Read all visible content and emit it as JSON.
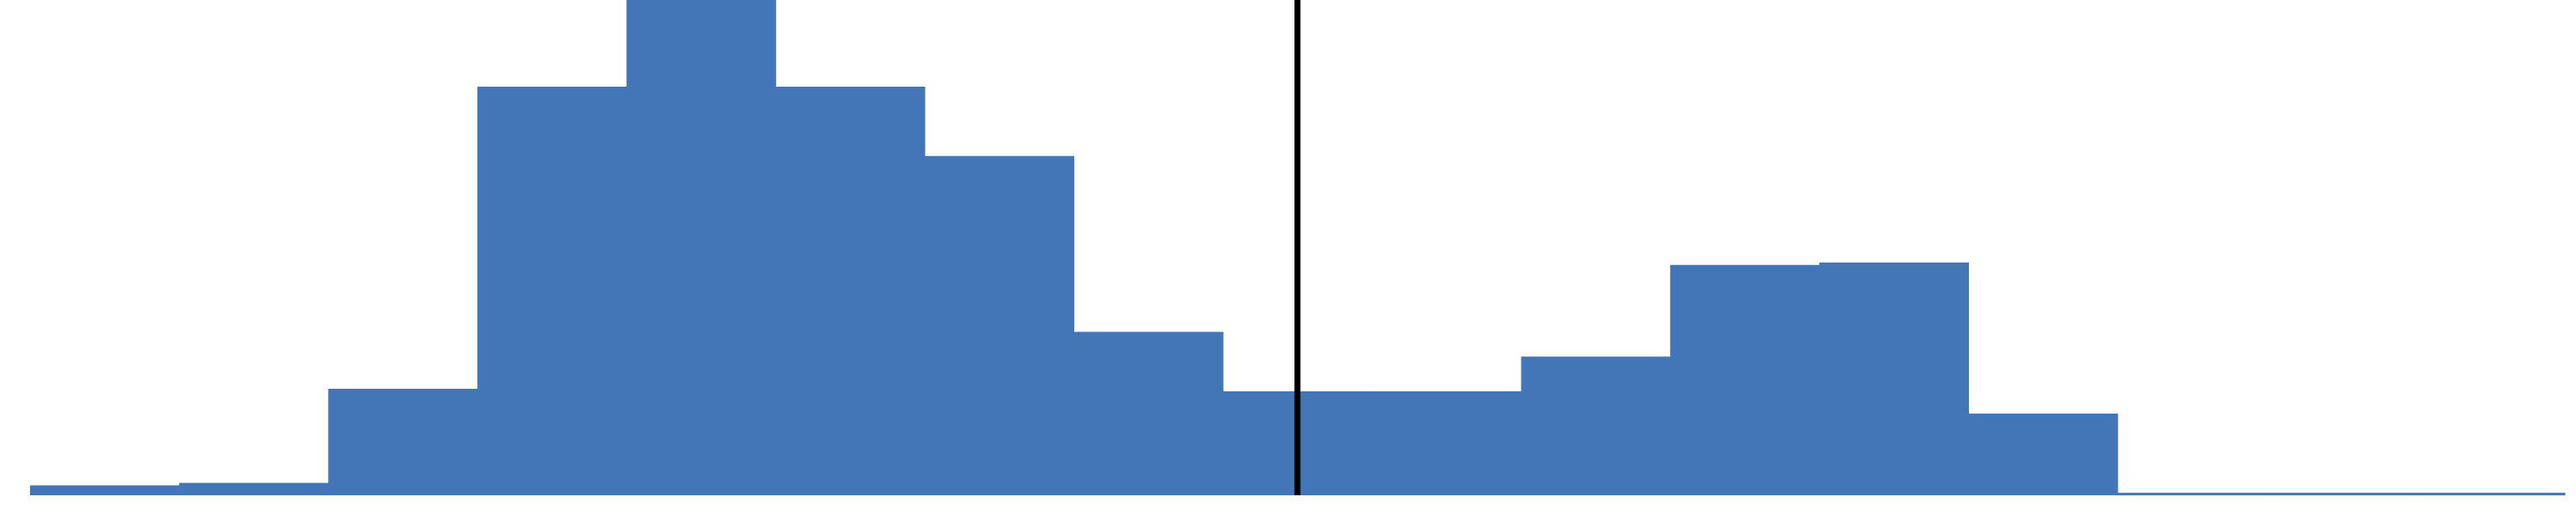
{
  "chart_data": {
    "type": "bar",
    "subtype": "histogram",
    "title": "",
    "xlabel": "",
    "ylabel": "",
    "bin_count": 17,
    "bin_width": 1,
    "x_range": [
      0,
      17
    ],
    "ylim": [
      0,
      100
    ],
    "values": [
      2,
      2.5,
      21.5,
      82.5,
      100,
      82.5,
      68.5,
      33,
      21,
      21,
      28,
      46.5,
      47,
      16.5,
      0.5,
      0.5,
      0.5
    ],
    "reference_line_x": 8.5,
    "colors": {
      "bars": "#4276b6",
      "reference_line": "#000000",
      "background": "#ffffff"
    },
    "grid": false,
    "legend": "none"
  }
}
